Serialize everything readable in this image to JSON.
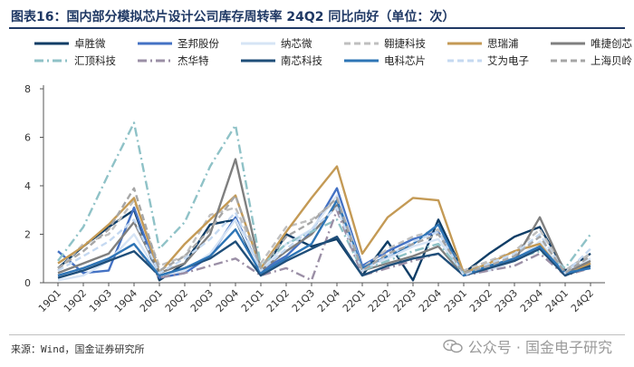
{
  "header": {
    "title": "图表16：国内部分模拟芯片设计公司库存周转率 24Q2 同比向好（单位：次）"
  },
  "footer": {
    "source": "来源：Wind，国金证券研究所",
    "watermark": "公众号 · 国金电子研究"
  },
  "chart_data": {
    "type": "line",
    "title": "国内部分模拟芯片设计公司库存周转率 24Q2 同比向好（单位：次）",
    "xlabel": "",
    "ylabel": "",
    "ylim": [
      0,
      8
    ],
    "yticks": [
      0,
      2,
      4,
      6,
      8
    ],
    "grid": false,
    "legend_position": "top",
    "categories": [
      "19Q1",
      "19Q2",
      "19Q3",
      "19Q4",
      "20Q1",
      "20Q2",
      "20Q3",
      "20Q4",
      "21Q1",
      "21Q2",
      "21Q3",
      "21Q4",
      "22Q1",
      "22Q2",
      "22Q3",
      "22Q4",
      "23Q1",
      "23Q2",
      "23Q3",
      "23Q4",
      "24Q1",
      "24Q2"
    ],
    "series": [
      {
        "name": "卓胜微",
        "color": "#0f3d66",
        "dash": "solid",
        "width": 2.4,
        "values": [
          0.6,
          1.5,
          2.3,
          3.0,
          0.1,
          0.8,
          2.4,
          2.6,
          0.3,
          2.0,
          1.5,
          1.8,
          0.3,
          1.7,
          0.1,
          2.6,
          0.4,
          1.2,
          1.9,
          2.3,
          0.5,
          1.2
        ]
      },
      {
        "name": "圣邦股份",
        "color": "#4472c4",
        "dash": "solid",
        "width": 2.4,
        "values": [
          1.3,
          0.4,
          0.5,
          3.1,
          0.2,
          0.4,
          1.1,
          2.7,
          0.5,
          1.1,
          2.1,
          3.9,
          0.7,
          1.3,
          1.8,
          2.1,
          0.3,
          0.6,
          1.0,
          1.5,
          0.3,
          0.8
        ]
      },
      {
        "name": "纳芯微",
        "color": "#d6e4f5",
        "dash": "solid",
        "width": 2.4,
        "values": [
          0.1,
          0.3,
          0.9,
          2.0,
          0.3,
          0.5,
          1.2,
          2.6,
          0.5,
          1.6,
          2.2,
          3.6,
          0.6,
          1.0,
          1.5,
          1.8,
          0.3,
          0.5,
          0.9,
          1.7,
          0.4,
          1.0
        ]
      },
      {
        "name": "翱捷科技",
        "color": "#bfbfbf",
        "dash": "dash",
        "width": 2.4,
        "values": [
          0.5,
          1.6,
          2.0,
          3.4,
          0.7,
          1.1,
          2.8,
          3.1,
          0.8,
          2.3,
          2.6,
          3.4,
          0.6,
          1.4,
          1.9,
          2.2,
          0.5,
          0.9,
          1.3,
          2.2,
          0.5,
          1.2
        ]
      },
      {
        "name": "思瑞浦",
        "color": "#c49a55",
        "dash": "solid",
        "width": 2.4,
        "values": [
          0.8,
          1.5,
          2.4,
          3.5,
          0.4,
          1.6,
          2.6,
          3.6,
          0.6,
          2.1,
          3.5,
          4.8,
          1.2,
          2.7,
          3.5,
          3.4,
          0.4,
          0.8,
          1.3,
          1.6,
          0.3,
          0.8
        ]
      },
      {
        "name": "唯捷创芯",
        "color": "#7f7f7f",
        "dash": "solid",
        "width": 2.4,
        "values": [
          0.4,
          0.8,
          1.2,
          2.5,
          0.4,
          0.8,
          2.0,
          5.1,
          0.5,
          1.3,
          2.0,
          3.2,
          0.5,
          0.8,
          1.1,
          1.5,
          0.3,
          0.6,
          0.9,
          2.7,
          0.4,
          0.9
        ]
      },
      {
        "name": "汇顶科技",
        "color": "#8fc2c7",
        "dash": "dashdot",
        "width": 2.4,
        "values": [
          0.9,
          2.3,
          4.5,
          6.6,
          1.4,
          2.5,
          4.8,
          6.5,
          0.7,
          1.6,
          2.1,
          2.6,
          0.5,
          0.9,
          1.3,
          1.6,
          0.4,
          0.7,
          1.0,
          1.3,
          0.6,
          2.0
        ]
      },
      {
        "name": "杰华特",
        "color": "#9b8fa6",
        "dash": "dashdot",
        "width": 2.4,
        "values": [
          0.3,
          0.6,
          1.0,
          1.6,
          0.2,
          0.4,
          0.7,
          1.0,
          0.3,
          0.6,
          0.1,
          3.0,
          0.3,
          0.6,
          0.9,
          1.2,
          0.3,
          0.5,
          0.7,
          1.2,
          0.3,
          0.6
        ]
      },
      {
        "name": "南芯科技",
        "color": "#1f4e79",
        "dash": "solid",
        "width": 2.4,
        "values": [
          0.2,
          0.5,
          0.9,
          1.3,
          0.3,
          0.6,
          1.0,
          1.7,
          0.3,
          0.9,
          1.4,
          1.9,
          0.3,
          0.7,
          1.0,
          1.2,
          0.3,
          0.6,
          0.9,
          1.4,
          0.3,
          0.7
        ]
      },
      {
        "name": "电科芯片",
        "color": "#2e75b6",
        "dash": "solid",
        "width": 2.4,
        "values": [
          0.3,
          0.6,
          1.0,
          1.6,
          0.3,
          0.6,
          1.1,
          2.2,
          0.4,
          1.0,
          1.6,
          3.4,
          0.6,
          1.1,
          1.6,
          2.4,
          0.3,
          0.7,
          1.0,
          1.5,
          0.4,
          0.6
        ]
      },
      {
        "name": "艾为电子",
        "color": "#c5d9f1",
        "dash": "dash",
        "width": 2.4,
        "values": [
          0.5,
          1.1,
          1.7,
          2.6,
          0.4,
          1.0,
          1.8,
          2.9,
          0.5,
          1.4,
          2.2,
          3.1,
          0.5,
          1.1,
          1.7,
          2.1,
          0.3,
          0.8,
          1.2,
          2.0,
          0.4,
          1.4
        ]
      },
      {
        "name": "上海贝岭",
        "color": "#a6a6a6",
        "dash": "dash",
        "width": 2.4,
        "values": [
          0.6,
          1.3,
          2.2,
          3.9,
          0.5,
          1.1,
          2.2,
          3.6,
          0.6,
          1.9,
          2.5,
          3.5,
          0.5,
          1.2,
          1.6,
          2.0,
          0.4,
          0.7,
          1.1,
          1.9,
          0.4,
          1.1
        ]
      }
    ]
  }
}
